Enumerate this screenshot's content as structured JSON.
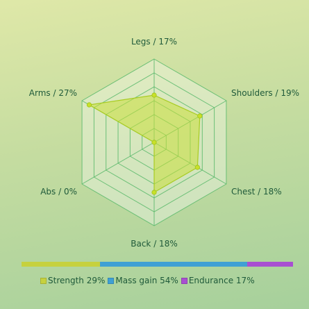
{
  "chart_data": [
    {
      "type": "radar",
      "axes": [
        {
          "name": "Legs",
          "value": 17,
          "label": "Legs / 17%"
        },
        {
          "name": "Shoulders",
          "value": 19,
          "label": "Shoulders / 19%"
        },
        {
          "name": "Chest",
          "value": 18,
          "label": "Chest / 18%"
        },
        {
          "name": "Back",
          "value": 18,
          "label": "Back / 18%"
        },
        {
          "name": "Abs",
          "value": 0,
          "label": "Abs / 0%"
        },
        {
          "name": "Arms",
          "value": 27,
          "label": "Arms / 27%"
        }
      ],
      "max": 30,
      "rings": 6,
      "colors": {
        "fill": "#c8df3a",
        "stroke": "#a8cc22",
        "grid": "#58b86a",
        "point": "#c8e02a"
      }
    },
    {
      "type": "bar",
      "orientation": "stacked-horizontal",
      "series": [
        {
          "name": "Strength",
          "value": 29,
          "label": "Strength 29%",
          "color": "#c6d13e"
        },
        {
          "name": "Mass gain",
          "value": 54,
          "label": "Mass gain 54%",
          "color": "#3fa0d4"
        },
        {
          "name": "Endurance",
          "value": 17,
          "label": "Endurance 17%",
          "color": "#a84fd1"
        }
      ]
    }
  ]
}
